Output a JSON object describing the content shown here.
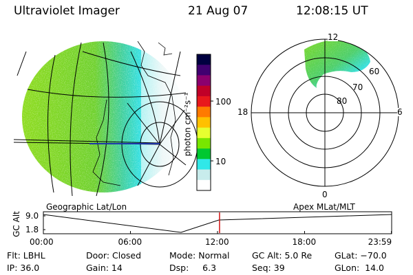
{
  "header": {
    "instrument": "Ultraviolet Imager",
    "date": "21 Aug 07",
    "time": "12:08:15 UT"
  },
  "colorbar": {
    "unit_label": "photon cm⁻²s⁻¹",
    "ticks": [
      "100",
      "10"
    ],
    "colors": [
      "#000040",
      "#400070",
      "#8b006e",
      "#c00028",
      "#e8181c",
      "#ff7a00",
      "#ffc000",
      "#e6ff30",
      "#78e600",
      "#00c830",
      "#30e8e8",
      "#c8ecec",
      "#ffffff"
    ]
  },
  "polar_plot": {
    "mlt_labels": {
      "top": "12",
      "left": "18",
      "right": "6",
      "bottom": "0"
    },
    "lat_labels": [
      "60",
      "70",
      "80"
    ]
  },
  "timeline": {
    "left_title": "Geographic Lat/Lon",
    "right_title": "Apex MLat/MLT",
    "axis_label": "GC Alt",
    "y_ticks": [
      "9.0",
      "1.8"
    ],
    "x_ticks": [
      "00:00",
      "06:00",
      "12:00",
      "18:00",
      "23:59"
    ],
    "current_time_hours": 12.14
  },
  "status": {
    "row1": [
      {
        "key": "flt",
        "text": "Flt: LBHL"
      },
      {
        "key": "door",
        "text": "Door: Closed"
      },
      {
        "key": "mode",
        "text": "Mode: Normal"
      },
      {
        "key": "gcalt",
        "text": "GC Alt: 5.0 Re"
      },
      {
        "key": "glat",
        "text": "GLat: −70.0"
      }
    ],
    "row2": [
      {
        "key": "ip",
        "text": "IP: 36.0"
      },
      {
        "key": "gain",
        "text": "Gain: 14"
      },
      {
        "key": "dsp",
        "text": "Dsp:     6.3"
      },
      {
        "key": "seq",
        "text": "Seq: 39"
      },
      {
        "key": "glon",
        "text": "GLon:  14.0"
      }
    ]
  }
}
